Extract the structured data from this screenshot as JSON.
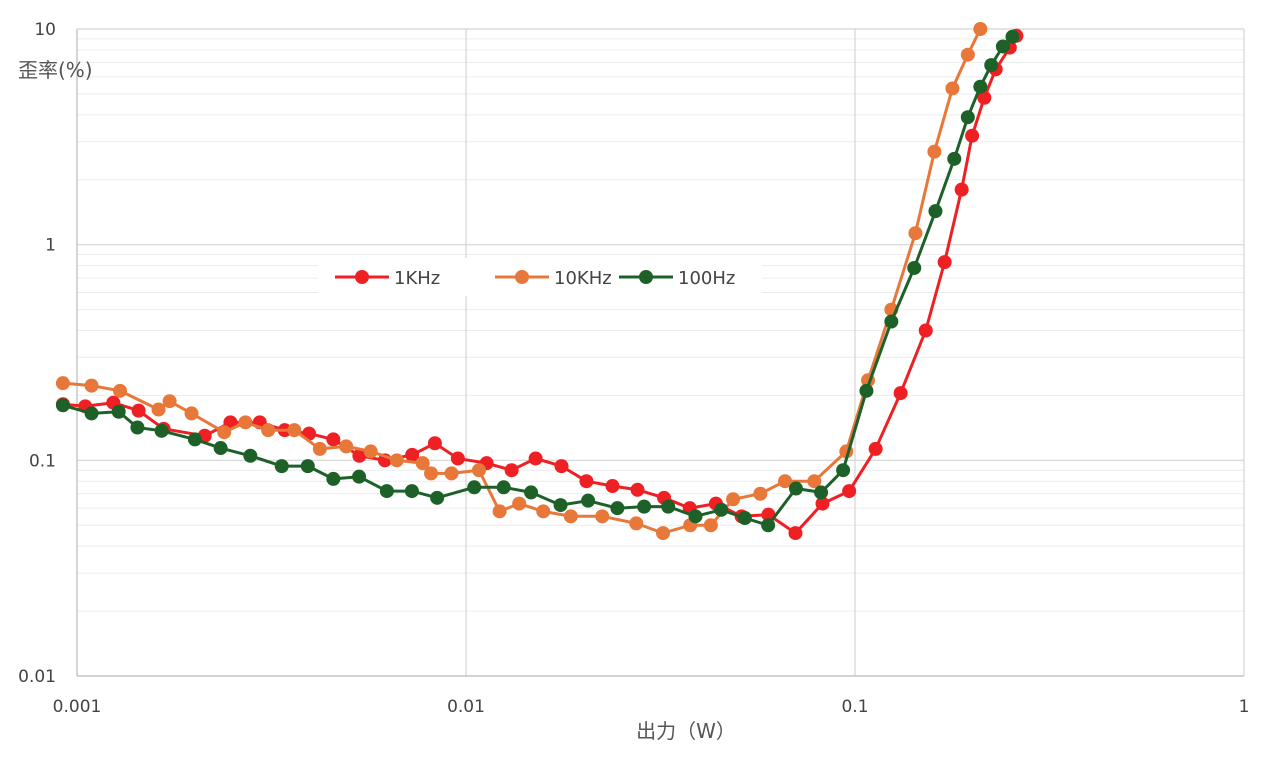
{
  "chart_data": {
    "type": "line",
    "xlabel": "出力（W）",
    "ylabel": "歪率(%)",
    "x_scale": "log",
    "y_scale": "log",
    "xlim": [
      0.001,
      1
    ],
    "ylim": [
      0.01,
      10
    ],
    "x_ticks": [
      "0.001",
      "0.01",
      "0.1",
      "1"
    ],
    "y_ticks": [
      "10",
      "1",
      "0.1",
      "0.01"
    ],
    "grid": true,
    "legend_position": "center-left",
    "series": [
      {
        "name": "1KHz",
        "color": "#ee2024",
        "points": [
          [
            0.00092,
            0.182
          ],
          [
            0.00105,
            0.178
          ],
          [
            0.00124,
            0.185
          ],
          [
            0.00144,
            0.17
          ],
          [
            0.00167,
            0.14
          ],
          [
            0.00213,
            0.13
          ],
          [
            0.00248,
            0.15
          ],
          [
            0.00295,
            0.15
          ],
          [
            0.00342,
            0.138
          ],
          [
            0.00395,
            0.133
          ],
          [
            0.00456,
            0.125
          ],
          [
            0.00532,
            0.105
          ],
          [
            0.00619,
            0.1
          ],
          [
            0.00727,
            0.106
          ],
          [
            0.00832,
            0.12
          ],
          [
            0.00953,
            0.102
          ],
          [
            0.0113,
            0.097
          ],
          [
            0.0131,
            0.09
          ],
          [
            0.0151,
            0.102
          ],
          [
            0.0176,
            0.094
          ],
          [
            0.0204,
            0.08
          ],
          [
            0.0238,
            0.076
          ],
          [
            0.0276,
            0.073
          ],
          [
            0.0323,
            0.067
          ],
          [
            0.0376,
            0.06
          ],
          [
            0.0439,
            0.063
          ],
          [
            0.0511,
            0.055
          ],
          [
            0.0599,
            0.056
          ],
          [
            0.0703,
            0.046
          ],
          [
            0.0825,
            0.063
          ],
          [
            0.0966,
            0.072
          ],
          [
            0.113,
            0.113
          ],
          [
            0.131,
            0.205
          ],
          [
            0.152,
            0.4
          ],
          [
            0.17,
            0.83
          ],
          [
            0.188,
            1.8
          ],
          [
            0.2,
            3.2
          ],
          [
            0.215,
            4.8
          ],
          [
            0.23,
            6.5
          ],
          [
            0.25,
            8.2
          ],
          [
            0.26,
            9.3
          ]
        ]
      },
      {
        "name": "10KHz",
        "color": "#e8773a",
        "points": [
          [
            0.00092,
            0.228
          ],
          [
            0.00109,
            0.222
          ],
          [
            0.00129,
            0.21
          ],
          [
            0.00162,
            0.172
          ],
          [
            0.00173,
            0.188
          ],
          [
            0.00197,
            0.165
          ],
          [
            0.00239,
            0.135
          ],
          [
            0.00271,
            0.15
          ],
          [
            0.0031,
            0.138
          ],
          [
            0.00362,
            0.138
          ],
          [
            0.00421,
            0.113
          ],
          [
            0.00492,
            0.116
          ],
          [
            0.00569,
            0.11
          ],
          [
            0.00664,
            0.1
          ],
          [
            0.00774,
            0.097
          ],
          [
            0.00813,
            0.087
          ],
          [
            0.00918,
            0.087
          ],
          [
            0.0108,
            0.09
          ],
          [
            0.0122,
            0.058
          ],
          [
            0.0137,
            0.063
          ],
          [
            0.0158,
            0.058
          ],
          [
            0.0186,
            0.055
          ],
          [
            0.0224,
            0.055
          ],
          [
            0.0274,
            0.051
          ],
          [
            0.0321,
            0.046
          ],
          [
            0.0377,
            0.05
          ],
          [
            0.0426,
            0.05
          ],
          [
            0.0486,
            0.066
          ],
          [
            0.0571,
            0.07
          ],
          [
            0.0661,
            0.08
          ],
          [
            0.0786,
            0.08
          ],
          [
            0.095,
            0.11
          ],
          [
            0.108,
            0.235
          ],
          [
            0.124,
            0.5
          ],
          [
            0.143,
            1.13
          ],
          [
            0.16,
            2.7
          ],
          [
            0.178,
            5.3
          ],
          [
            0.195,
            7.6
          ],
          [
            0.21,
            10.0
          ]
        ]
      },
      {
        "name": "100Hz",
        "color": "#1d6128",
        "points": [
          [
            0.00092,
            0.18
          ],
          [
            0.00109,
            0.165
          ],
          [
            0.00128,
            0.168
          ],
          [
            0.00143,
            0.142
          ],
          [
            0.00165,
            0.137
          ],
          [
            0.00201,
            0.125
          ],
          [
            0.00234,
            0.114
          ],
          [
            0.00279,
            0.105
          ],
          [
            0.00336,
            0.094
          ],
          [
            0.00392,
            0.094
          ],
          [
            0.00456,
            0.082
          ],
          [
            0.00531,
            0.084
          ],
          [
            0.00626,
            0.072
          ],
          [
            0.00726,
            0.072
          ],
          [
            0.00843,
            0.067
          ],
          [
            0.0105,
            0.075
          ],
          [
            0.0125,
            0.075
          ],
          [
            0.0147,
            0.071
          ],
          [
            0.0175,
            0.062
          ],
          [
            0.0206,
            0.065
          ],
          [
            0.0245,
            0.06
          ],
          [
            0.0287,
            0.061
          ],
          [
            0.0331,
            0.061
          ],
          [
            0.0389,
            0.055
          ],
          [
            0.0453,
            0.059
          ],
          [
            0.0521,
            0.054
          ],
          [
            0.0598,
            0.05
          ],
          [
            0.0705,
            0.074
          ],
          [
            0.0818,
            0.071
          ],
          [
            0.0932,
            0.09
          ],
          [
            0.107,
            0.21
          ],
          [
            0.124,
            0.44
          ],
          [
            0.142,
            0.78
          ],
          [
            0.161,
            1.43
          ],
          [
            0.18,
            2.5
          ],
          [
            0.195,
            3.9
          ],
          [
            0.21,
            5.4
          ],
          [
            0.224,
            6.8
          ],
          [
            0.24,
            8.3
          ],
          [
            0.254,
            9.2
          ]
        ]
      }
    ]
  }
}
